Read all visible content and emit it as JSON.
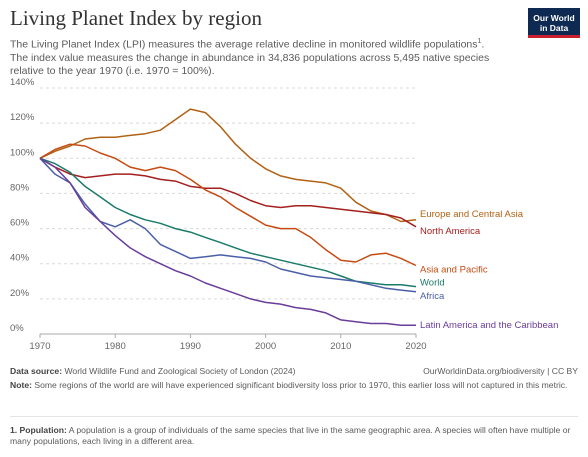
{
  "header": {
    "title": "Living Planet Index by region",
    "subtitle_main": "The Living Planet Index (LPI) measures the average relative decline in monitored wildlife populations",
    "subtitle_ref": "1",
    "subtitle_rest": ". The index value measures the change in abundance in 34,836 populations across 5,495 native species relative to the year 1970 (i.e. 1970 = 100%).",
    "logo_line1": "Our World",
    "logo_line2": "in Data"
  },
  "footer": {
    "source_label": "Data source:",
    "source_text": "World Wildlife Fund and Zoological Society of London (2024)",
    "url_text": "OurWorldinData.org/biodiversity | CC BY",
    "note_label": "Note:",
    "note_text": "Some regions of the world are will have experienced significant biodiversity loss prior to 1970, this earlier loss will not captured in this metric.",
    "footnote_label": "1. Population:",
    "footnote_text": "A population is a group of individuals of the same species that live in the same geographic area. A species will often have multiple or many populations, each living in a different area."
  },
  "colors": {
    "europe": "#b16214",
    "north_america": "#a2201e",
    "asia_pacific": "#c54b13",
    "world": "#1b7b6b",
    "africa": "#4a5fa8",
    "latin_america": "#6a3d9a",
    "grid": "#d9d9d9",
    "axis_text": "#666666"
  },
  "chart_data": {
    "type": "line",
    "title": "Living Planet Index by region",
    "xlabel": "",
    "ylabel": "",
    "xlim": [
      1970,
      2020
    ],
    "ylim": [
      0,
      140
    ],
    "grid": true,
    "legend": "right, inline labels at line ends",
    "x_ticks": [
      "1970",
      "1980",
      "1990",
      "2000",
      "2010",
      "2020"
    ],
    "x_tick_values": [
      1970,
      1980,
      1990,
      2000,
      2010,
      2020
    ],
    "y_ticks": [
      "0%",
      "20%",
      "40%",
      "60%",
      "80%",
      "100%",
      "120%",
      "140%"
    ],
    "y_tick_values": [
      0,
      20,
      40,
      60,
      80,
      100,
      120,
      140
    ],
    "x": [
      1970,
      1972,
      1974,
      1976,
      1978,
      1980,
      1982,
      1984,
      1986,
      1988,
      1990,
      1992,
      1994,
      1996,
      1998,
      2000,
      2002,
      2004,
      2006,
      2008,
      2010,
      2012,
      2014,
      2016,
      2018,
      2020
    ],
    "series": [
      {
        "name": "Europe and Central Asia",
        "key": "europe",
        "values": [
          100,
          104,
          107,
          111,
          112,
          112,
          113,
          114,
          116,
          122,
          128,
          126,
          118,
          108,
          100,
          94,
          90,
          88,
          87,
          86,
          83,
          75,
          70,
          68,
          64,
          65
        ]
      },
      {
        "name": "North America",
        "key": "north_america",
        "values": [
          100,
          95,
          91,
          89,
          90,
          91,
          91,
          90,
          88,
          87,
          84,
          83,
          83,
          80,
          76,
          73,
          72,
          73,
          73,
          72,
          71,
          70,
          69,
          68,
          66,
          61
        ]
      },
      {
        "name": "Asia and Pacific",
        "key": "asia_pacific",
        "values": [
          100,
          105,
          108,
          107,
          103,
          100,
          95,
          93,
          95,
          93,
          88,
          82,
          78,
          72,
          67,
          62,
          60,
          60,
          55,
          48,
          42,
          41,
          45,
          46,
          43,
          39
        ]
      },
      {
        "name": "World",
        "key": "world",
        "values": [
          100,
          97,
          92,
          84,
          78,
          72,
          68,
          65,
          63,
          60,
          58,
          55,
          52,
          49,
          46,
          44,
          42,
          40,
          38,
          36,
          33,
          30,
          29,
          28,
          28,
          27
        ]
      },
      {
        "name": "Africa",
        "key": "africa",
        "values": [
          100,
          91,
          86,
          74,
          64,
          61,
          65,
          60,
          51,
          47,
          43,
          44,
          45,
          44,
          43,
          41,
          37,
          35,
          33,
          32,
          31,
          30,
          28,
          26,
          25,
          24
        ]
      },
      {
        "name": "Latin America and the Caribbean",
        "key": "latin_america",
        "values": [
          100,
          95,
          86,
          72,
          64,
          56,
          49,
          44,
          40,
          36,
          33,
          29,
          26,
          23,
          20,
          18,
          17,
          15,
          14,
          12,
          8,
          7,
          6,
          6,
          5,
          5
        ]
      }
    ]
  }
}
